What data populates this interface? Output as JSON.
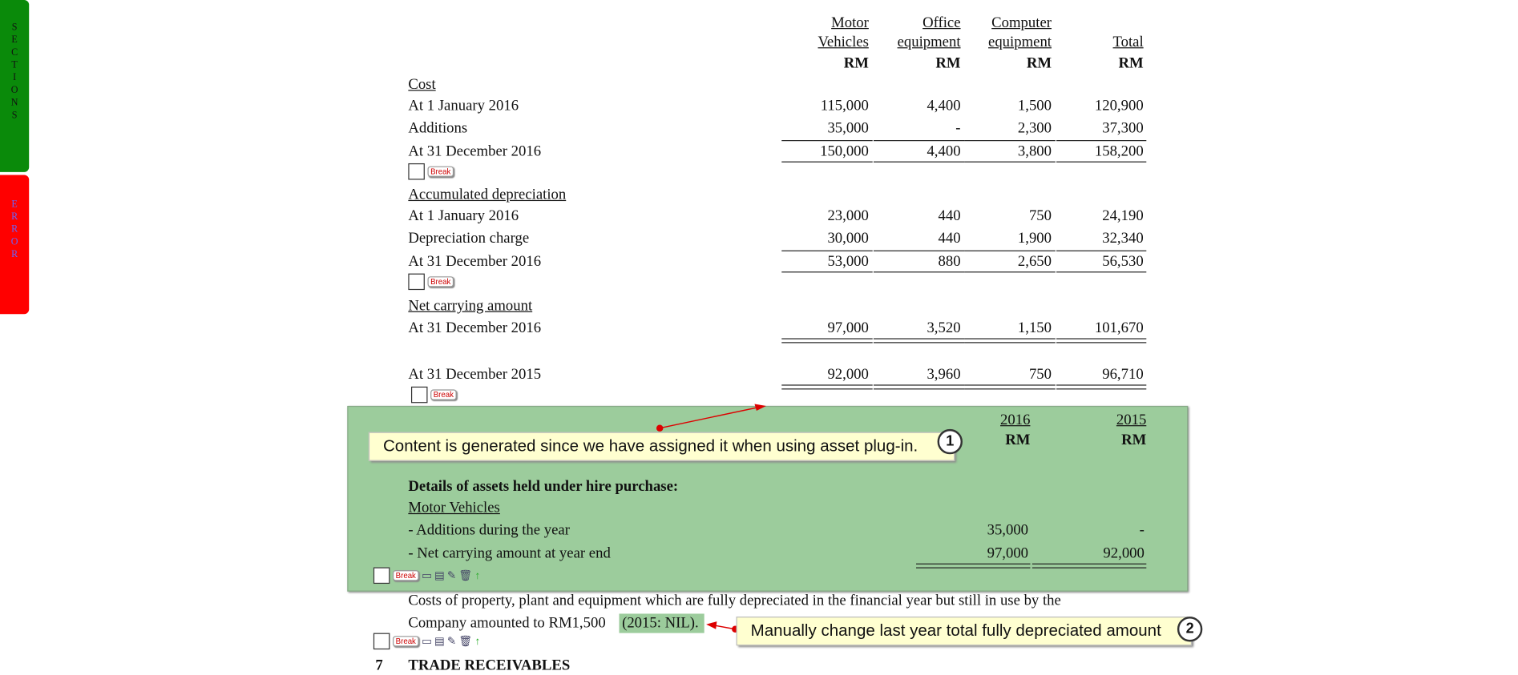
{
  "sidebar": {
    "sections": "SECTIONS",
    "error": "ERROR"
  },
  "table": {
    "columns": [
      [
        "Motor",
        "Vehicles"
      ],
      [
        "Office",
        "equipment"
      ],
      [
        "Computer",
        "equipment"
      ],
      [
        "Total"
      ]
    ],
    "unit": "RM",
    "groups": [
      {
        "heading": "Cost",
        "rows": [
          {
            "label": "At 1 January 2016",
            "values": [
              "115,000",
              "4,400",
              "1,500",
              "120,900"
            ]
          },
          {
            "label": "Additions",
            "values": [
              "35,000",
              "-",
              "2,300",
              "37,300"
            ]
          },
          {
            "label": "At 31 December 2016",
            "values": [
              "150,000",
              "4,400",
              "3,800",
              "158,200"
            ]
          }
        ]
      },
      {
        "heading": "Accumulated depreciation",
        "rows": [
          {
            "label": "At 1 January 2016",
            "values": [
              "23,000",
              "440",
              "750",
              "24,190"
            ]
          },
          {
            "label": "Depreciation charge",
            "values": [
              "30,000",
              "440",
              "1,900",
              "32,340"
            ]
          },
          {
            "label": "At 31 December 2016",
            "values": [
              "53,000",
              "880",
              "2,650",
              "56,530"
            ]
          }
        ]
      },
      {
        "heading": "Net carrying amount",
        "rows": [
          {
            "label": "At 31 December 2016",
            "values": [
              "97,000",
              "3,520",
              "1,150",
              "101,670"
            ]
          },
          {
            "label": "At 31 December 2015",
            "values": [
              "92,000",
              "3,960",
              "750",
              "96,710"
            ]
          }
        ]
      }
    ]
  },
  "break_label": "Break",
  "hire_purchase": {
    "years": [
      "2016",
      "2015"
    ],
    "unit": "RM",
    "title": "Details of assets held under hire purchase:",
    "subtitle": "Motor Vehicles",
    "rows": [
      {
        "label": "- Additions during the year",
        "values": [
          "35,000",
          "-"
        ]
      },
      {
        "label": "- Net carrying amount at year end",
        "values": [
          "97,000",
          "92,000"
        ]
      }
    ]
  },
  "paragraph": {
    "line1": "Costs of property, plant and equipment which are fully depreciated in the financial year but still in use by the",
    "line2": "Company amounted to RM1,500",
    "highlight": "(2015: NIL)."
  },
  "callouts": [
    {
      "number": "1",
      "text": "Content is generated since we have assigned it when using asset plug-in."
    },
    {
      "number": "2",
      "text": "Manually change last year total fully depreciated amount"
    }
  ],
  "next_section": {
    "number": "7",
    "title": "TRADE RECEIVABLES"
  }
}
